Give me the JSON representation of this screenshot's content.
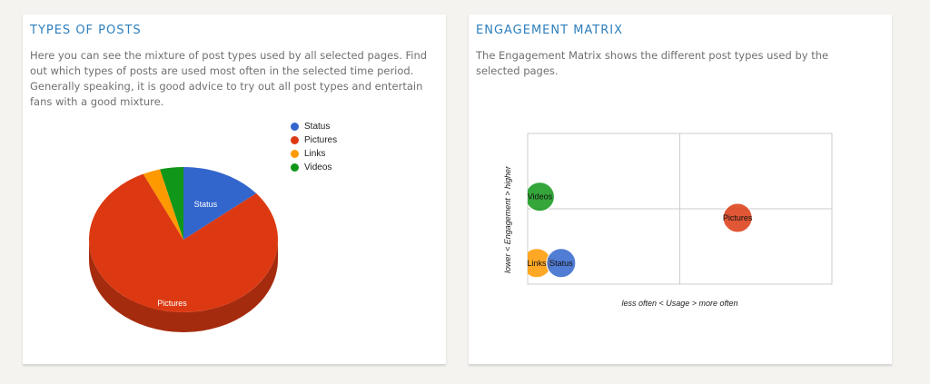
{
  "posts_panel": {
    "title": "TYPES OF POSTS",
    "description": "Here you can see the mixture of post types used by all selected pages. Find out which types of posts are used most often in the selected time period. Generally speaking, it is good advice to try out all post types and entertain fans with a good mixture."
  },
  "matrix_panel": {
    "title": "ENGAGEMENT MATRIX",
    "description": "The Engagement Matrix shows the different post types used by the selected pages."
  },
  "legend": [
    {
      "label": "Status",
      "color": "#3366cc"
    },
    {
      "label": "Pictures",
      "color": "#dc3912"
    },
    {
      "label": "Links",
      "color": "#ff9900"
    },
    {
      "label": "Videos",
      "color": "#109618"
    }
  ],
  "chart_data": [
    {
      "type": "pie",
      "series": [
        {
          "name": "Status",
          "value": 14,
          "color": "#3366cc"
        },
        {
          "name": "Pictures",
          "value": 79,
          "color": "#dc3912"
        },
        {
          "name": "Links",
          "value": 3,
          "color": "#ff9900"
        },
        {
          "name": "Videos",
          "value": 4,
          "color": "#109618"
        }
      ],
      "slice_labels": [
        "Status",
        "Pictures"
      ],
      "legend_position": "right",
      "three_d": true
    },
    {
      "type": "scatter",
      "xlabel": "less often < Usage > more often",
      "ylabel": "lower < Engagement > higher",
      "xlim": [
        0,
        1
      ],
      "ylim": [
        0,
        1
      ],
      "grid": true,
      "points": [
        {
          "label": "Videos",
          "x": 0.04,
          "y": 0.58,
          "color": "#109618"
        },
        {
          "label": "Pictures",
          "x": 0.69,
          "y": 0.44,
          "color": "#dc3912"
        },
        {
          "label": "Links",
          "x": 0.03,
          "y": 0.14,
          "color": "#ff9900"
        },
        {
          "label": "Status",
          "x": 0.11,
          "y": 0.14,
          "color": "#3366cc"
        }
      ]
    }
  ]
}
